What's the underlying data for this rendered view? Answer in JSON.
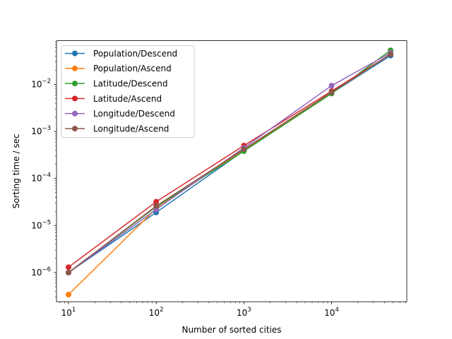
{
  "chart_data": {
    "type": "line",
    "title": "",
    "xlabel": "Number of sorted cities",
    "ylabel": "Sorting time / sec",
    "xscale": "log",
    "yscale": "log",
    "xlim": [
      7.3,
      72000
    ],
    "ylim": [
      2.4e-07,
      0.085
    ],
    "grid": false,
    "legend_position": "top-left",
    "x_ticks": [
      {
        "base": "10",
        "exp": "1",
        "value": 10
      },
      {
        "base": "10",
        "exp": "2",
        "value": 100
      },
      {
        "base": "10",
        "exp": "3",
        "value": 1000
      },
      {
        "base": "10",
        "exp": "4",
        "value": 10000
      }
    ],
    "y_ticks": [
      {
        "base": "10",
        "exp": "−6",
        "value": 1e-06
      },
      {
        "base": "10",
        "exp": "−5",
        "value": 1e-05
      },
      {
        "base": "10",
        "exp": "−4",
        "value": 0.0001
      },
      {
        "base": "10",
        "exp": "−3",
        "value": 0.001
      },
      {
        "base": "10",
        "exp": "−2",
        "value": 0.01
      }
    ],
    "x": [
      10,
      100,
      1000,
      10000,
      47000
    ],
    "series": [
      {
        "name": "Population/Descend",
        "color": "#1f77b4",
        "values": [
          1e-06,
          1.9e-05,
          0.00039,
          0.0065,
          0.041
        ]
      },
      {
        "name": "Population/Ascend",
        "color": "#ff7f0e",
        "values": [
          3.4e-07,
          2.3e-05,
          0.00041,
          0.0067,
          0.044
        ]
      },
      {
        "name": "Latitude/Descend",
        "color": "#2ca02c",
        "values": [
          1e-06,
          2.5e-05,
          0.00038,
          0.0064,
          0.053
        ]
      },
      {
        "name": "Latitude/Ascend",
        "color": "#d62728",
        "values": [
          1.3e-06,
          3.2e-05,
          0.0005,
          0.0072,
          0.044
        ]
      },
      {
        "name": "Longitude/Descend",
        "color": "#9467bd",
        "values": [
          1e-06,
          2.2e-05,
          0.00045,
          0.0094,
          0.047
        ]
      },
      {
        "name": "Longitude/Ascend",
        "color": "#8c564b",
        "values": [
          1e-06,
          2.6e-05,
          0.00042,
          0.0068,
          0.044
        ]
      }
    ]
  }
}
